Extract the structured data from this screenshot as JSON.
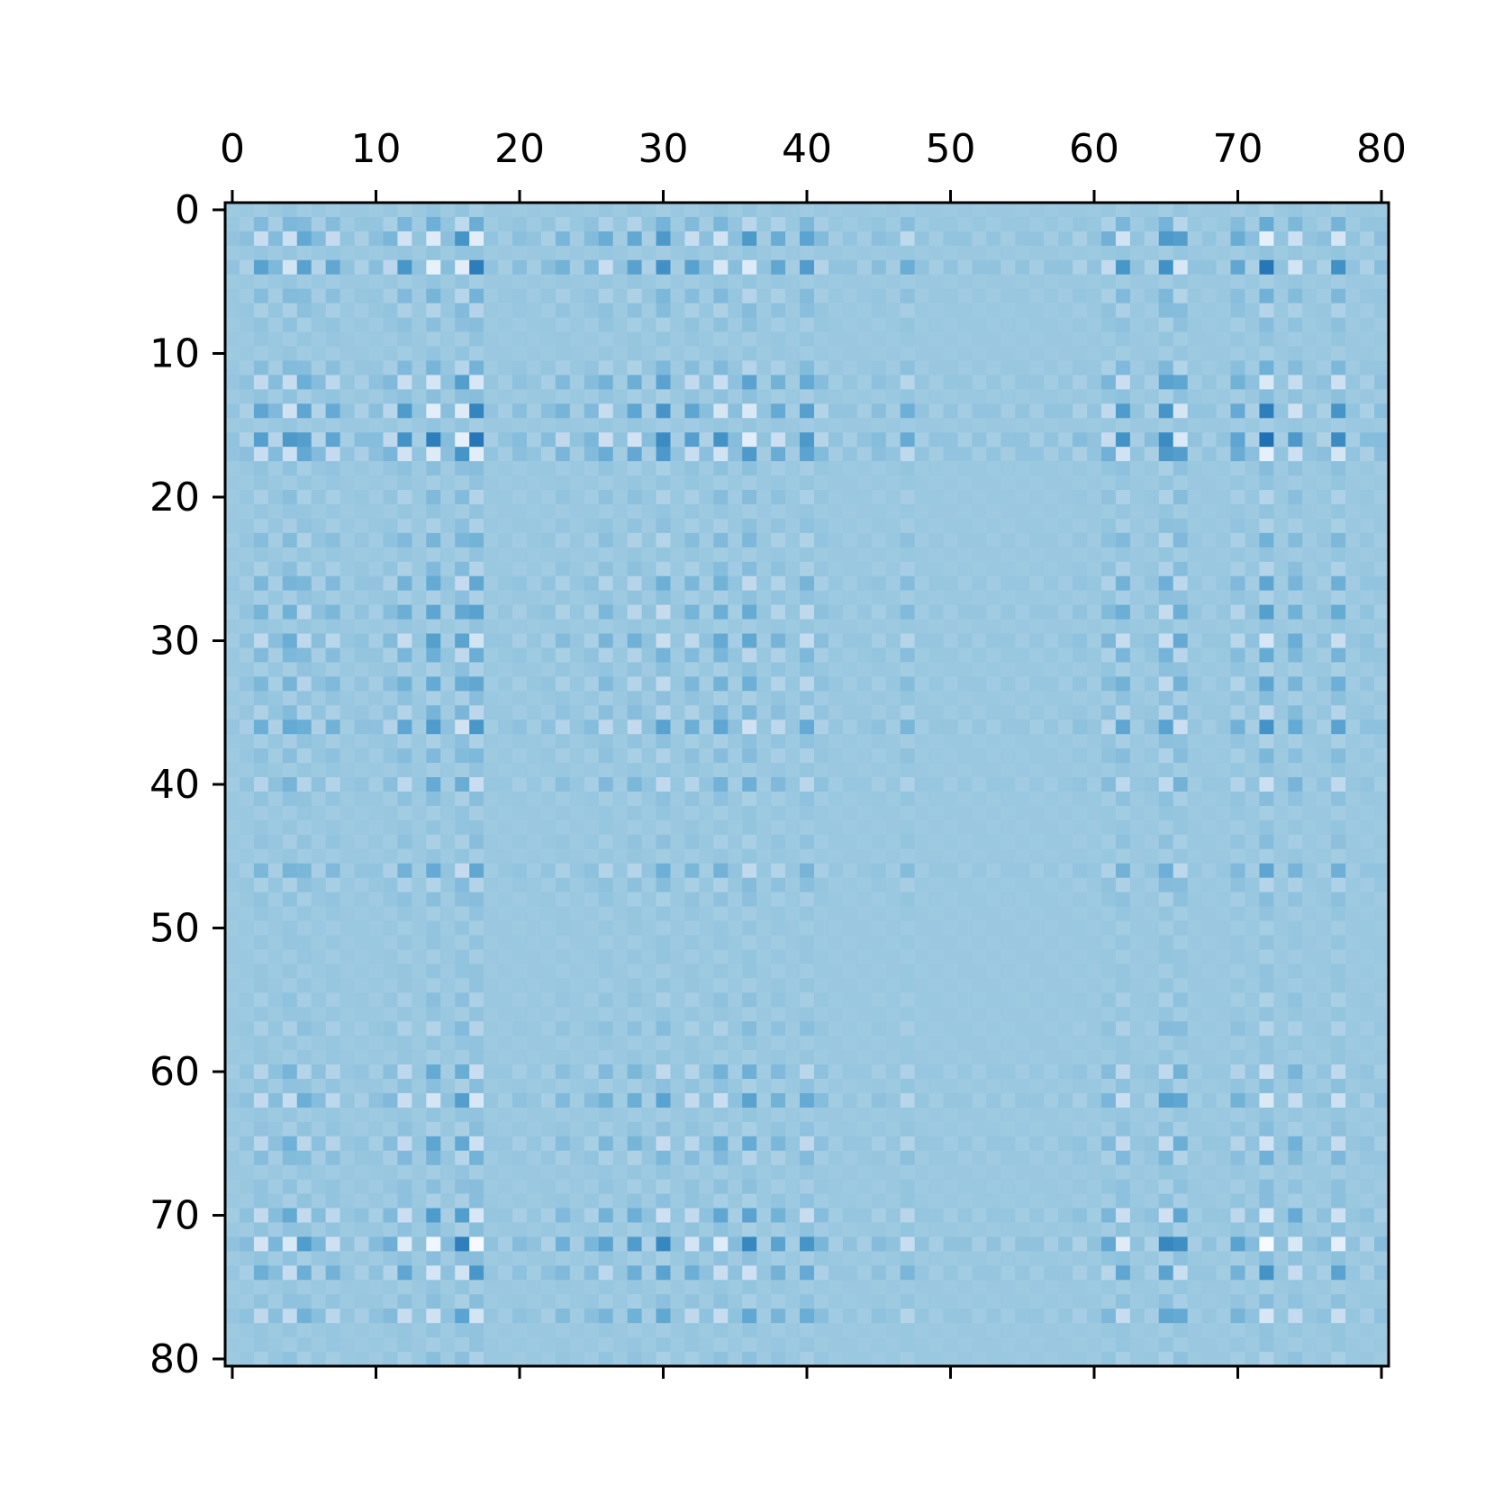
{
  "chart_data": {
    "type": "heatmap",
    "title": "",
    "xlabel": "",
    "ylabel": "",
    "rows": 81,
    "cols": 81,
    "xlim": [
      -0.5,
      80.5
    ],
    "ylim": [
      80.5,
      -0.5
    ],
    "x_axis_position": "top",
    "colormap": "Blues",
    "colorbar": false,
    "grid": false,
    "x_ticks": [
      0,
      10,
      20,
      30,
      40,
      50,
      60,
      70,
      80
    ],
    "x_tick_labels": [
      "0",
      "10",
      "20",
      "30",
      "40",
      "50",
      "60",
      "70",
      "80"
    ],
    "y_ticks": [
      0,
      10,
      20,
      30,
      40,
      50,
      60,
      70,
      80
    ],
    "y_tick_labels": [
      "0",
      "10",
      "20",
      "30",
      "40",
      "50",
      "60",
      "70",
      "80"
    ],
    "value_range": [
      0,
      1
    ],
    "baseline_value": 0.38,
    "row_weights": [
      0.05,
      0.25,
      0.55,
      0.05,
      0.65,
      0.05,
      0.2,
      0.15,
      0.1,
      0.05,
      0.05,
      0.2,
      0.45,
      0.1,
      0.6,
      0.05,
      0.7,
      0.55,
      0.1,
      0.05,
      0.15,
      0.05,
      0.1,
      0.2,
      0.05,
      0.15,
      0.3,
      0.1,
      0.35,
      0.05,
      0.4,
      0.25,
      0.1,
      0.3,
      0.1,
      0.2,
      0.45,
      0.1,
      0.15,
      0.05,
      0.3,
      0.1,
      0.05,
      0.05,
      0.1,
      0.05,
      0.3,
      0.15,
      0.1,
      0.05,
      0.05,
      0.05,
      0.05,
      0.05,
      0.05,
      0.1,
      0.05,
      0.15,
      0.05,
      0.05,
      0.3,
      0.1,
      0.45,
      0.05,
      0.1,
      0.35,
      0.2,
      0.05,
      0.1,
      0.1,
      0.45,
      0.1,
      0.75,
      0.1,
      0.45,
      0.05,
      0.1,
      0.4,
      0.05,
      0.05,
      0.1
    ],
    "col_weights": [
      0.05,
      0.1,
      0.35,
      0.15,
      0.4,
      0.35,
      0.15,
      0.3,
      0.05,
      0.1,
      0.1,
      0.2,
      0.45,
      0.05,
      0.6,
      0.1,
      0.55,
      0.65,
      0.05,
      0.05,
      0.1,
      0.05,
      0.1,
      0.2,
      0.05,
      0.15,
      0.3,
      0.05,
      0.35,
      0.1,
      0.5,
      0.05,
      0.35,
      0.1,
      0.45,
      0.1,
      0.5,
      0.05,
      0.3,
      0.05,
      0.4,
      0.15,
      0.05,
      0.05,
      0.05,
      0.1,
      0.05,
      0.25,
      0.05,
      0.05,
      0.05,
      0.05,
      0.05,
      0.05,
      0.05,
      0.05,
      0.05,
      0.05,
      0.05,
      0.1,
      0.05,
      0.25,
      0.45,
      0.05,
      0.1,
      0.5,
      0.45,
      0.05,
      0.05,
      0.05,
      0.3,
      0.1,
      0.7,
      0.05,
      0.4,
      0.05,
      0.1,
      0.5,
      0.05,
      0.1,
      0.1
    ],
    "coupling_strength": 0.85
  }
}
